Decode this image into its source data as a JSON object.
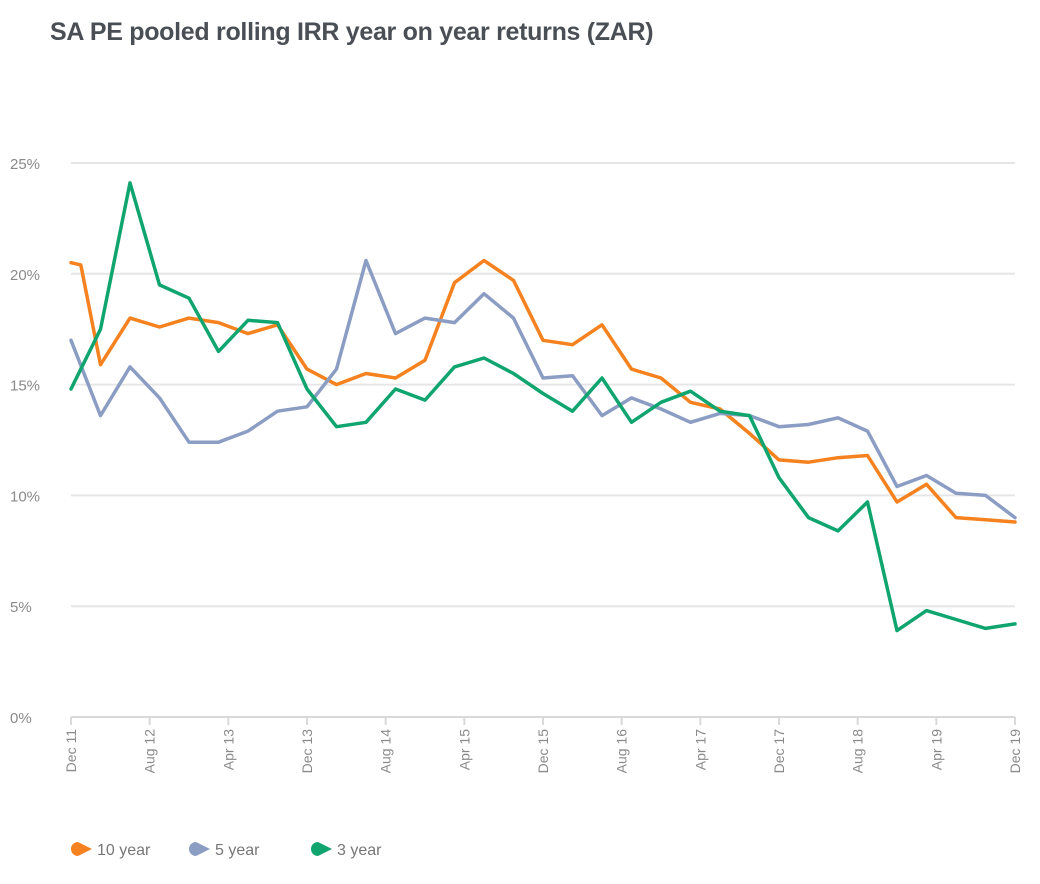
{
  "chart_data": {
    "type": "line",
    "title": "SA PE pooled rolling IRR year on year returns (ZAR)",
    "xlabel": "",
    "ylabel": "",
    "ylim": [
      0,
      25
    ],
    "yticks": [
      0,
      5,
      10,
      15,
      20,
      25
    ],
    "ytick_labels": [
      "0%",
      "5%",
      "10%",
      "15%",
      "20%",
      "25%"
    ],
    "x_unit": "months since Dec 11",
    "xlim": [
      0,
      96
    ],
    "xticks": [
      0,
      8,
      16,
      24,
      32,
      40,
      48,
      56,
      64,
      72,
      80,
      88,
      96
    ],
    "xtick_labels": [
      "Dec 11",
      "Aug 12",
      "Apr 13",
      "Dec 13",
      "Aug 14",
      "Apr 15",
      "Dec 15",
      "Aug 16",
      "Apr 17",
      "Dec 17",
      "Aug 18",
      "Apr 19",
      "Dec 19"
    ],
    "grid": "horizontal",
    "legend_position": "bottom-left",
    "series": [
      {
        "name": "10 year",
        "color": "#F5821F",
        "x": [
          0,
          1,
          3,
          6,
          9,
          12,
          15,
          18,
          21,
          24,
          27,
          30,
          33,
          36,
          39,
          42,
          45,
          48,
          51,
          54,
          57,
          60,
          63,
          66,
          69,
          72,
          75,
          78,
          81,
          84,
          87,
          90,
          93,
          96
        ],
        "values": [
          20.5,
          20.4,
          15.9,
          18.0,
          17.6,
          18.0,
          17.8,
          17.3,
          17.7,
          15.7,
          15.0,
          15.5,
          15.3,
          16.1,
          19.6,
          20.6,
          19.7,
          17.0,
          16.8,
          17.7,
          15.7,
          15.3,
          14.2,
          13.9,
          12.8,
          11.6,
          11.5,
          11.7,
          11.8,
          9.7,
          10.5,
          9.0,
          8.9,
          8.8
        ]
      },
      {
        "name": "5 year",
        "color": "#8B9DC3",
        "x": [
          0,
          3,
          6,
          9,
          12,
          15,
          18,
          21,
          24,
          27,
          30,
          33,
          36,
          39,
          42,
          45,
          48,
          51,
          54,
          57,
          60,
          63,
          66,
          69,
          72,
          75,
          78,
          81,
          84,
          87,
          90,
          93,
          96
        ],
        "values": [
          17.0,
          13.6,
          15.8,
          14.4,
          12.4,
          12.4,
          12.9,
          13.8,
          14.0,
          15.7,
          20.6,
          17.3,
          18.0,
          17.8,
          19.1,
          18.0,
          15.3,
          15.4,
          13.6,
          14.4,
          13.9,
          13.3,
          13.7,
          13.6,
          13.1,
          13.2,
          13.5,
          12.9,
          10.4,
          10.9,
          10.1,
          10.0,
          9.0
        ]
      },
      {
        "name": "3 year",
        "color": "#10A56E",
        "x": [
          0,
          3,
          6,
          9,
          12,
          15,
          18,
          21,
          24,
          27,
          30,
          33,
          36,
          39,
          42,
          45,
          48,
          51,
          54,
          57,
          60,
          63,
          66,
          69,
          72,
          75,
          78,
          81,
          84,
          87,
          90,
          93,
          96
        ],
        "values": [
          14.8,
          17.5,
          24.1,
          19.5,
          18.9,
          16.5,
          17.9,
          17.8,
          14.8,
          13.1,
          13.3,
          14.8,
          14.3,
          15.8,
          16.2,
          15.5,
          14.6,
          13.8,
          15.3,
          13.3,
          14.2,
          14.7,
          13.8,
          13.6,
          10.8,
          9.0,
          8.4,
          9.7,
          3.9,
          4.8,
          4.4,
          4.0,
          4.2
        ]
      }
    ]
  },
  "legend": {
    "items": [
      {
        "label": "10 year",
        "color": "#F5821F"
      },
      {
        "label": "5 year",
        "color": "#8B9DC3"
      },
      {
        "label": "3 year",
        "color": "#10A56E"
      }
    ]
  },
  "colors": {
    "grid": "#e6e6e6",
    "axis": "#d9d9d9",
    "tick_text": "#8a8a8a",
    "title": "#4a4f55"
  }
}
